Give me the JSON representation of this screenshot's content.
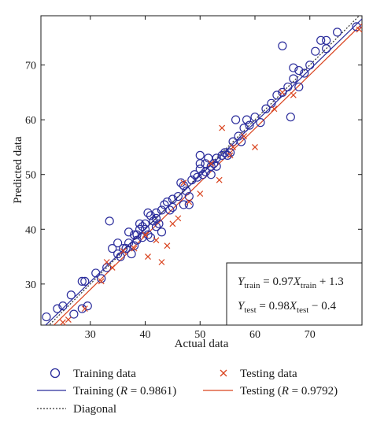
{
  "chart_data": {
    "type": "scatter",
    "xlabel": "Actual data",
    "ylabel": "Predicted data",
    "xlim": [
      21,
      79.5
    ],
    "ylim": [
      22.5,
      79
    ],
    "x_ticks": [
      30,
      40,
      50,
      60,
      70
    ],
    "y_ticks": [
      30,
      40,
      50,
      60,
      70
    ],
    "grid": false,
    "legend_position": "bottom",
    "colors": {
      "training": "#2b2d9c",
      "testing": "#d9431e",
      "diagonal": "#333333"
    },
    "series": [
      {
        "name": "Training data",
        "marker": "circle",
        "points": [
          [
            22,
            24
          ],
          [
            24,
            25.5
          ],
          [
            25,
            26
          ],
          [
            26.5,
            28
          ],
          [
            27,
            24.5
          ],
          [
            28.5,
            25.5
          ],
          [
            28.5,
            30.5
          ],
          [
            29,
            30.5
          ],
          [
            29.5,
            26
          ],
          [
            31,
            32
          ],
          [
            32,
            31
          ],
          [
            33,
            33
          ],
          [
            33.5,
            41.5
          ],
          [
            34,
            36.5
          ],
          [
            35,
            37.5
          ],
          [
            35,
            35.5
          ],
          [
            35.5,
            35
          ],
          [
            36,
            36.5
          ],
          [
            36.5,
            36.5
          ],
          [
            37,
            39.5
          ],
          [
            37,
            37.5
          ],
          [
            37.5,
            35.5
          ],
          [
            38,
            39
          ],
          [
            38,
            37
          ],
          [
            38.5,
            38
          ],
          [
            38.5,
            39
          ],
          [
            39,
            40
          ],
          [
            39,
            41
          ],
          [
            39.5,
            38.5
          ],
          [
            39.5,
            40.5
          ],
          [
            40,
            40
          ],
          [
            40,
            41
          ],
          [
            40.5,
            39
          ],
          [
            40.5,
            43
          ],
          [
            41,
            42.5
          ],
          [
            41,
            38.5
          ],
          [
            41.5,
            41.5
          ],
          [
            42,
            40.5
          ],
          [
            42,
            42
          ],
          [
            42,
            43
          ],
          [
            42.5,
            41
          ],
          [
            43,
            43.5
          ],
          [
            43,
            39.5
          ],
          [
            43.5,
            44.5
          ],
          [
            44,
            45
          ],
          [
            44.5,
            43.5
          ],
          [
            45,
            44
          ],
          [
            45,
            45.5
          ],
          [
            46,
            46
          ],
          [
            46.5,
            48.5
          ],
          [
            47,
            48
          ],
          [
            47,
            44.5
          ],
          [
            47.5,
            47
          ],
          [
            48,
            46
          ],
          [
            48,
            44.5
          ],
          [
            48.5,
            49
          ],
          [
            49,
            50
          ],
          [
            49.5,
            49.5
          ],
          [
            50,
            51
          ],
          [
            50,
            52
          ],
          [
            50,
            53.5
          ],
          [
            50.5,
            50
          ],
          [
            51,
            52
          ],
          [
            51,
            50.5
          ],
          [
            51.5,
            53
          ],
          [
            52,
            51.5
          ],
          [
            52,
            50
          ],
          [
            52.5,
            52
          ],
          [
            53,
            53
          ],
          [
            53,
            51.5
          ],
          [
            54,
            53.5
          ],
          [
            54.5,
            54
          ],
          [
            55,
            53.5
          ],
          [
            55.5,
            54
          ],
          [
            56,
            56
          ],
          [
            56.5,
            60
          ],
          [
            57,
            57
          ],
          [
            57.5,
            56
          ],
          [
            58,
            58.5
          ],
          [
            58.5,
            60
          ],
          [
            59,
            59
          ],
          [
            60,
            60.5
          ],
          [
            61,
            59.5
          ],
          [
            62,
            62
          ],
          [
            63,
            63
          ],
          [
            64,
            64.5
          ],
          [
            65,
            73.5
          ],
          [
            65,
            65
          ],
          [
            66,
            66
          ],
          [
            66.5,
            60.5
          ],
          [
            67,
            67.5
          ],
          [
            67,
            69.5
          ],
          [
            68,
            66
          ],
          [
            68,
            69
          ],
          [
            69,
            68.5
          ],
          [
            70,
            70
          ],
          [
            71,
            72.5
          ],
          [
            72,
            74.5
          ],
          [
            73,
            74.5
          ],
          [
            73,
            73
          ],
          [
            75,
            76
          ],
          [
            78.5,
            77
          ]
        ]
      },
      {
        "name": "Testing data",
        "marker": "x",
        "points": [
          [
            25,
            23
          ],
          [
            26,
            23.5
          ],
          [
            29,
            25.5
          ],
          [
            32,
            30.5
          ],
          [
            33,
            34
          ],
          [
            34,
            33
          ],
          [
            36,
            36
          ],
          [
            38,
            36.5
          ],
          [
            40,
            39
          ],
          [
            40.5,
            35
          ],
          [
            42,
            38
          ],
          [
            43,
            34
          ],
          [
            44,
            37
          ],
          [
            45,
            41
          ],
          [
            46,
            42
          ],
          [
            47,
            48.5
          ],
          [
            48,
            45
          ],
          [
            50,
            46.5
          ],
          [
            52,
            52
          ],
          [
            53.5,
            49
          ],
          [
            54,
            58.5
          ],
          [
            55.5,
            53.5
          ],
          [
            56,
            55
          ],
          [
            58,
            57
          ],
          [
            60,
            55
          ],
          [
            63.5,
            62
          ],
          [
            65,
            65
          ],
          [
            67,
            64.5
          ],
          [
            79,
            76.5
          ]
        ]
      }
    ],
    "fit_lines": [
      {
        "name": "Training (R = 0.9861)",
        "slope": 0.97,
        "intercept": 1.3
      },
      {
        "name": "Testing (R = 0.9792)",
        "slope": 0.98,
        "intercept": -0.4
      },
      {
        "name": "Diagonal",
        "slope": 1,
        "intercept": 0
      }
    ],
    "annotations": {
      "train_eq": {
        "lhs": "Y",
        "lhs_sub": "train",
        "mid": " = 0.97",
        "var": "X",
        "var_sub": "train",
        "tail": " + 1.3"
      },
      "test_eq": {
        "lhs": "Y",
        "lhs_sub": "test",
        "mid": " = 0.98",
        "var": "X",
        "var_sub": "test",
        "tail": " − 0.4"
      }
    },
    "legend": {
      "training_data": "Training data",
      "testing_data": "Testing data",
      "training_fit_prefix": "Training (",
      "training_fit_r": "R",
      "training_fit_suffix": " = 0.9861)",
      "testing_fit_prefix": "Testing (",
      "testing_fit_r": "R",
      "testing_fit_suffix": " = 0.9792)",
      "diagonal": "Diagonal"
    }
  }
}
